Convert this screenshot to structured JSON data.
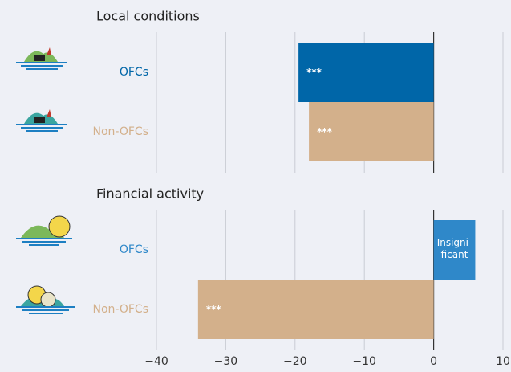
{
  "chart_data": [
    {
      "type": "bar",
      "title": "Local conditions",
      "categories": [
        "OFCs",
        "Non-OFCs"
      ],
      "values": [
        -19.5,
        -18
      ],
      "colors": [
        "#0066a8",
        "#d3b08b"
      ],
      "annotations": [
        "***",
        "***"
      ]
    },
    {
      "type": "bar",
      "title": "Financial activity",
      "categories": [
        "OFCs",
        "Non-OFCs"
      ],
      "values": [
        6,
        -34
      ],
      "colors": [
        "#2f88c9",
        "#d3b08b"
      ],
      "annotations": [
        "Insigni-ficant",
        "***"
      ],
      "xlim": [
        -40,
        10
      ],
      "xticks": [
        {
          "value": -40,
          "label": "−40"
        },
        {
          "value": -30,
          "label": "−30"
        },
        {
          "value": -20,
          "label": "−20"
        },
        {
          "value": -10,
          "label": "−10"
        },
        0,
        10
      ],
      "grid": true
    }
  ]
}
